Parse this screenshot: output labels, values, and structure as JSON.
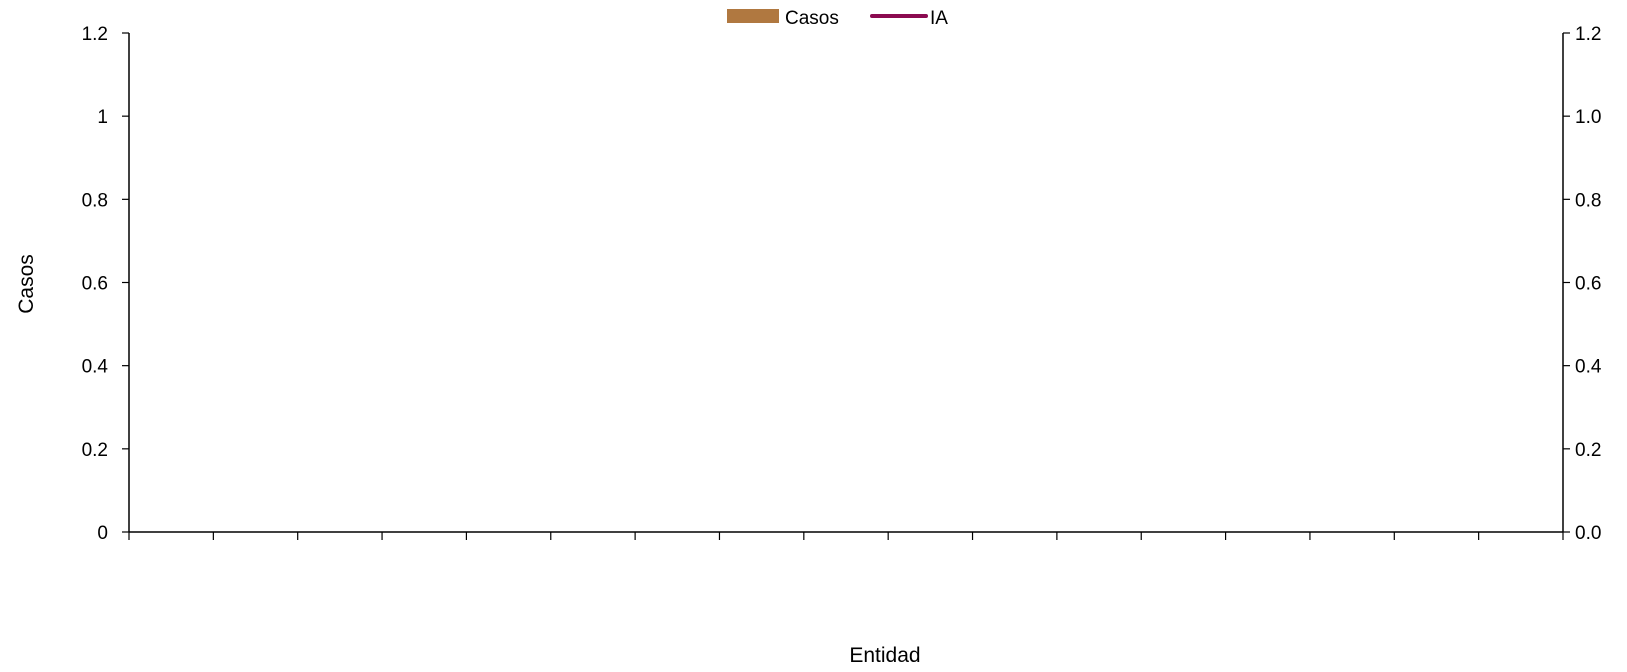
{
  "chart_data": {
    "type": "bar",
    "title": "",
    "xlabel": "Entidad",
    "ylabel": "Casos",
    "ylabel_right": "",
    "category_slots": 17,
    "categories": [],
    "series": [
      {
        "name": "Casos",
        "type": "bar",
        "color": "#B07840",
        "values": []
      },
      {
        "name": "IA",
        "type": "line",
        "color": "#8B0A50",
        "values": []
      }
    ],
    "ylim": [
      0,
      1.2
    ],
    "y_ticks": [
      "0",
      "0.2",
      "0.4",
      "0.6",
      "0.8",
      "1",
      "1.2"
    ],
    "ylim_right": [
      0,
      1.2
    ],
    "y_ticks_right": [
      "0.0",
      "0.2",
      "0.4",
      "0.6",
      "0.8",
      "1.0",
      "1.2"
    ],
    "grid": false,
    "legend_position": "top-center"
  }
}
